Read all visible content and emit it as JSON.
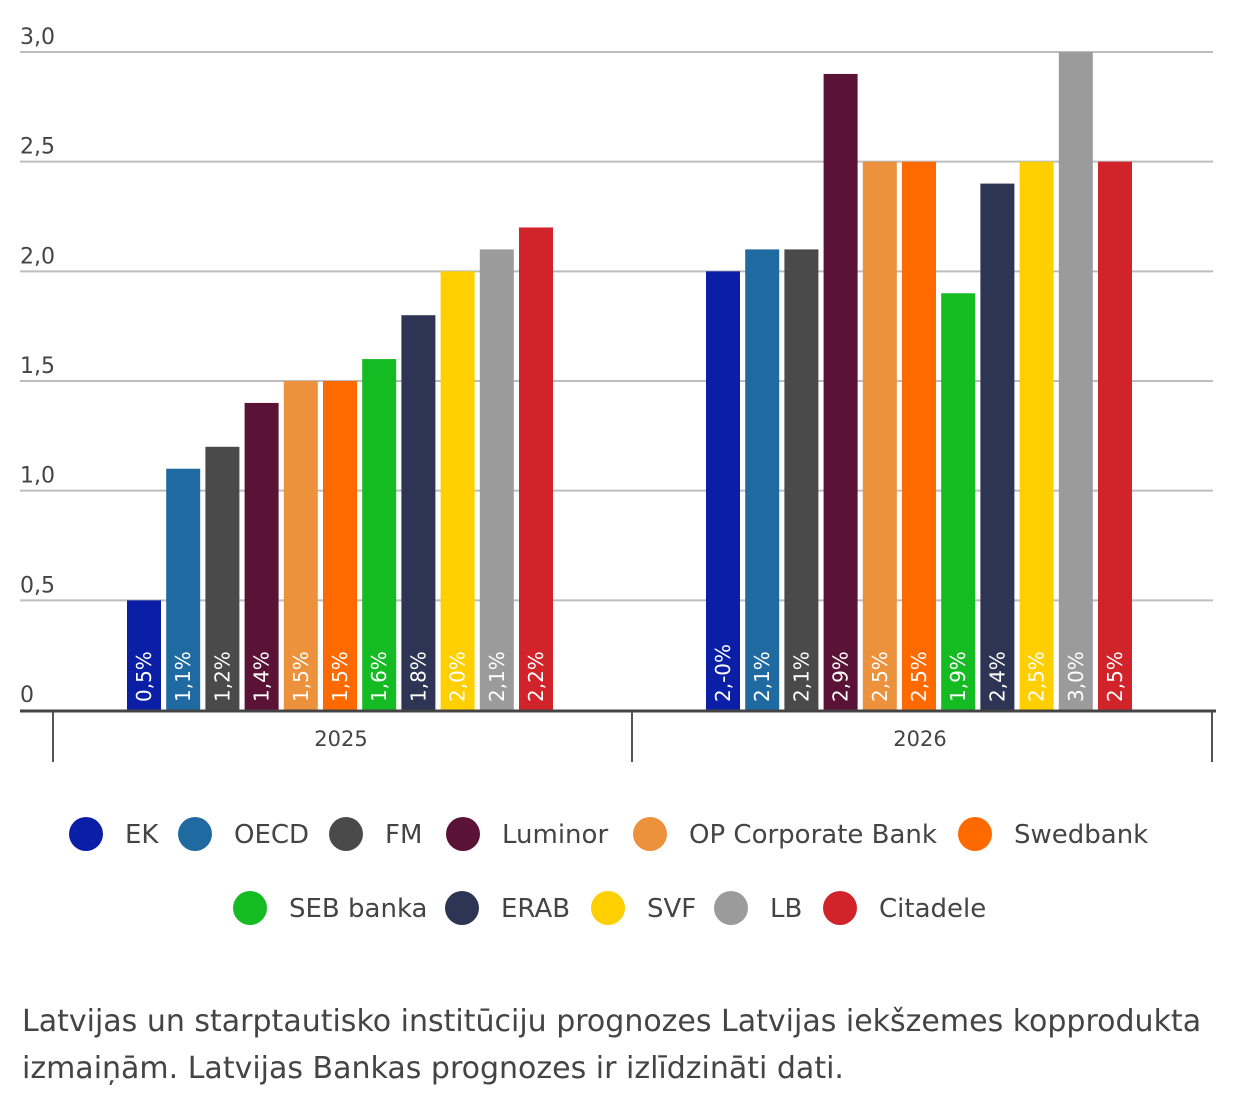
{
  "chart_data": {
    "type": "bar",
    "categories": [
      "2025",
      "2026"
    ],
    "ylim": [
      0,
      3.0
    ],
    "yticks": [
      "0",
      "0,5",
      "1,0",
      "1,5",
      "2,0",
      "2,5",
      "3,0"
    ],
    "ytick_values": [
      0,
      0.5,
      1.0,
      1.5,
      2.0,
      2.5,
      3.0
    ],
    "grid": true,
    "legend_position": "bottom",
    "series": [
      {
        "name": "EK",
        "color": "#0a1fa5",
        "values": [
          0.5,
          2.0
        ],
        "labels": [
          "0,5%",
          "2,-0%"
        ]
      },
      {
        "name": "OECD",
        "color": "#1f6aa0",
        "values": [
          1.1,
          2.1
        ],
        "labels": [
          "1,1%",
          "2,1%"
        ]
      },
      {
        "name": "FM",
        "color": "#4a4a4a",
        "values": [
          1.2,
          2.1
        ],
        "labels": [
          "1,2%",
          "2,1%"
        ]
      },
      {
        "name": "Luminor",
        "color": "#5a1236",
        "values": [
          1.4,
          2.9
        ],
        "labels": [
          "1,4%",
          "2,9%"
        ]
      },
      {
        "name": "OP Corporate Bank",
        "color": "#ec913c",
        "values": [
          1.5,
          2.5
        ],
        "labels": [
          "1,5%",
          "2,5%"
        ]
      },
      {
        "name": "Swedbank",
        "color": "#ff6a00",
        "values": [
          1.5,
          2.5
        ],
        "labels": [
          "1,5%",
          "2,5%"
        ]
      },
      {
        "name": "SEB banka",
        "color": "#15bb22",
        "values": [
          1.6,
          1.9
        ],
        "labels": [
          "1,6%",
          "1,9%"
        ]
      },
      {
        "name": "ERAB",
        "color": "#2e3454",
        "values": [
          1.8,
          2.4
        ],
        "labels": [
          "1,8%",
          "2,4%"
        ]
      },
      {
        "name": "SVF",
        "color": "#ffcf00",
        "values": [
          2.0,
          2.5
        ],
        "labels": [
          "2,0%",
          "2,5%"
        ]
      },
      {
        "name": "LB",
        "color": "#9b9b9b",
        "values": [
          2.1,
          3.0
        ],
        "labels": [
          "2,1%",
          "3,0%"
        ]
      },
      {
        "name": "Citadele",
        "color": "#d0232a",
        "values": [
          2.2,
          2.5
        ],
        "labels": [
          "2,2%",
          "2,5%"
        ]
      }
    ]
  },
  "caption": "Latvijas un starptautisko institūciju prognozes Latvijas iekšzemes kopprodukta izmaiņām. Latvijas Bankas prognozes ir izlīdzināti dati."
}
